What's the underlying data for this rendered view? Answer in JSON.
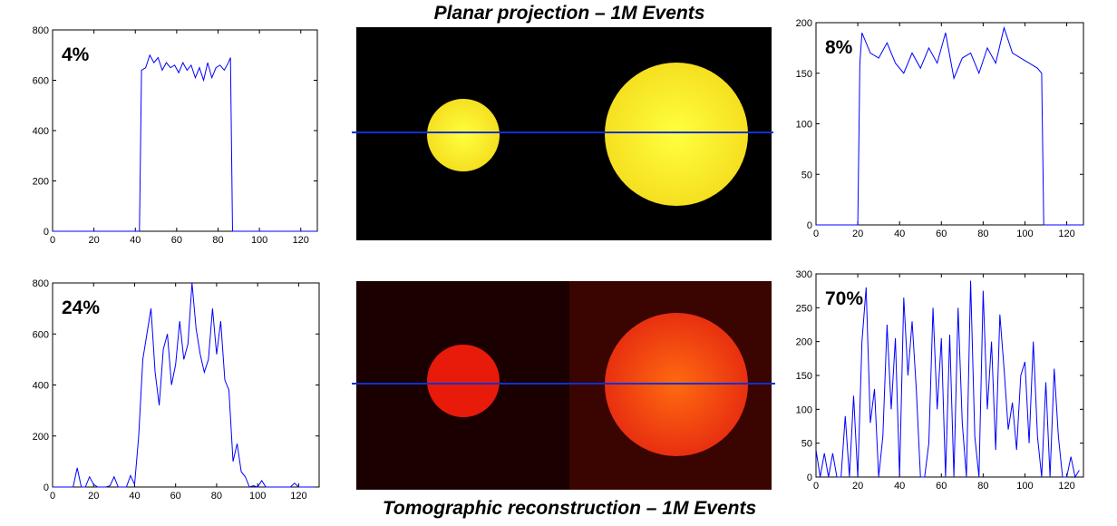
{
  "chart_data": [
    {
      "type": "line",
      "annotation": "4%",
      "color": "#0000ff",
      "x": [
        0,
        42,
        43,
        45,
        47,
        49,
        51,
        53,
        55,
        57,
        59,
        61,
        63,
        65,
        67,
        69,
        71,
        73,
        75,
        77,
        79,
        81,
        83,
        85,
        86,
        87,
        128
      ],
      "values": [
        0,
        0,
        640,
        650,
        700,
        670,
        690,
        640,
        670,
        650,
        660,
        630,
        670,
        640,
        660,
        610,
        650,
        600,
        670,
        610,
        650,
        660,
        640,
        670,
        690,
        0,
        0
      ],
      "xlim": [
        0,
        128
      ],
      "ylim": [
        0,
        800
      ],
      "xticks": [
        0,
        20,
        40,
        60,
        80,
        100,
        120
      ],
      "yticks": [
        0,
        200,
        400,
        600,
        800
      ]
    },
    {
      "type": "line",
      "annotation": "8%",
      "color": "#0000ff",
      "x": [
        0,
        20,
        21,
        22,
        26,
        30,
        34,
        38,
        42,
        46,
        50,
        54,
        58,
        62,
        66,
        70,
        74,
        78,
        82,
        86,
        90,
        94,
        98,
        102,
        106,
        108,
        109,
        128
      ],
      "values": [
        0,
        0,
        160,
        190,
        170,
        165,
        180,
        160,
        150,
        170,
        155,
        175,
        160,
        190,
        145,
        165,
        170,
        150,
        175,
        160,
        195,
        170,
        165,
        160,
        155,
        150,
        0,
        0
      ],
      "xlim": [
        0,
        128
      ],
      "ylim": [
        0,
        200
      ],
      "xticks": [
        0,
        20,
        40,
        60,
        80,
        100,
        120
      ],
      "yticks": [
        0,
        50,
        100,
        150,
        200
      ]
    },
    {
      "type": "line",
      "annotation": "24%",
      "color": "#0000ff",
      "x": [
        0,
        2,
        4,
        6,
        8,
        10,
        12,
        14,
        16,
        18,
        20,
        22,
        24,
        26,
        28,
        30,
        32,
        34,
        36,
        38,
        40,
        42,
        44,
        46,
        48,
        50,
        52,
        54,
        56,
        58,
        60,
        62,
        64,
        66,
        68,
        70,
        72,
        74,
        76,
        78,
        80,
        82,
        84,
        86,
        88,
        90,
        92,
        94,
        96,
        98,
        100,
        102,
        104,
        106,
        108,
        110,
        112,
        114,
        116,
        118,
        120,
        122,
        124,
        126,
        128
      ],
      "values": [
        0,
        0,
        0,
        0,
        0,
        0,
        75,
        0,
        0,
        40,
        10,
        0,
        0,
        0,
        5,
        40,
        0,
        0,
        0,
        45,
        10,
        200,
        500,
        600,
        700,
        450,
        320,
        540,
        600,
        400,
        480,
        650,
        500,
        560,
        800,
        620,
        520,
        450,
        500,
        700,
        520,
        650,
        420,
        380,
        100,
        170,
        60,
        40,
        0,
        5,
        0,
        25,
        0,
        0,
        0,
        0,
        0,
        0,
        0,
        15,
        0,
        0,
        0,
        0,
        0
      ],
      "xlim": [
        0,
        130
      ],
      "ylim": [
        0,
        800
      ],
      "xticks": [
        0,
        20,
        40,
        60,
        80,
        100,
        120
      ],
      "yticks": [
        0,
        200,
        400,
        600,
        800
      ]
    },
    {
      "type": "line",
      "annotation": "70%",
      "color": "#0000ff",
      "x": [
        0,
        2,
        4,
        6,
        8,
        10,
        12,
        14,
        16,
        18,
        20,
        22,
        24,
        26,
        28,
        30,
        32,
        34,
        36,
        38,
        40,
        42,
        44,
        46,
        48,
        50,
        52,
        54,
        56,
        58,
        60,
        62,
        64,
        66,
        68,
        70,
        72,
        74,
        76,
        78,
        80,
        82,
        84,
        86,
        88,
        90,
        92,
        94,
        96,
        98,
        100,
        102,
        104,
        106,
        108,
        110,
        112,
        114,
        116,
        118,
        120,
        122,
        124,
        126
      ],
      "values": [
        40,
        0,
        35,
        0,
        35,
        0,
        0,
        90,
        0,
        120,
        0,
        200,
        280,
        80,
        130,
        0,
        60,
        225,
        100,
        205,
        0,
        265,
        150,
        230,
        130,
        0,
        0,
        50,
        250,
        100,
        205,
        0,
        210,
        0,
        250,
        80,
        0,
        290,
        60,
        0,
        275,
        100,
        200,
        40,
        240,
        160,
        70,
        110,
        40,
        150,
        170,
        50,
        200,
        60,
        0,
        140,
        0,
        160,
        60,
        0,
        0,
        30,
        0,
        10
      ],
      "xlim": [
        0,
        128
      ],
      "ylim": [
        0,
        300
      ],
      "xticks": [
        0,
        20,
        40,
        60,
        80,
        100,
        120
      ],
      "yticks": [
        0,
        50,
        100,
        150,
        200,
        250,
        300
      ]
    }
  ],
  "images": [
    {
      "title": "Planar projection – 1M Events"
    },
    {
      "title": "Tomographic reconstruction – 1M Events"
    }
  ]
}
